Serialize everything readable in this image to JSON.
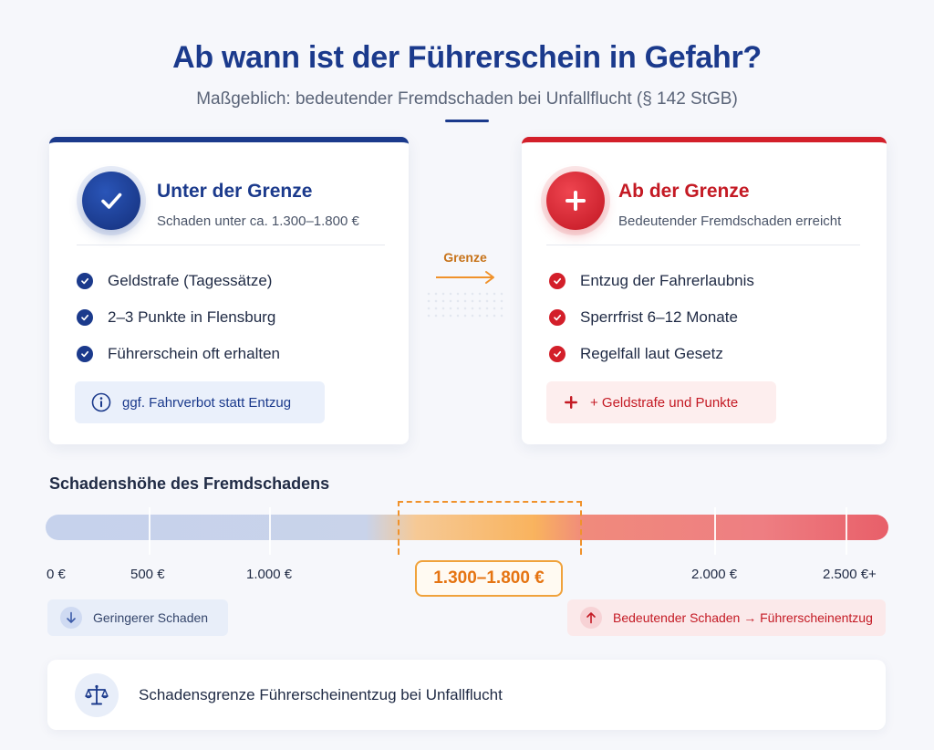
{
  "header": {
    "title": "Ab wann ist der Führerschein in Gefahr?",
    "subtitle": "Maßgeblich: bedeutender Fremdschaden bei Unfallflucht (§ 142 StGB)"
  },
  "left_card": {
    "icon": "check-icon",
    "accent_color": "#1b3a8c",
    "title": "Unter der Grenze",
    "subtitle": "Schaden unter ca. 1.300–1.800 €",
    "items": [
      "Geldstrafe (Tagessätze)",
      "2–3 Punkte in Flensburg",
      "Führerschein oft erhalten"
    ],
    "note_icon": "info-icon",
    "note": "ggf. Fahrverbot statt Entzug"
  },
  "middle": {
    "label": "Grenze",
    "icon": "arrow-right-icon"
  },
  "right_card": {
    "icon": "plus-icon",
    "accent_color": "#d31f2a",
    "title": "Ab der Grenze",
    "subtitle": "Bedeutender Fremdschaden erreicht",
    "items": [
      "Entzug der Fahrerlaubnis",
      "Sperrfrist 6–12 Monate",
      "Regelfall laut Gesetz"
    ],
    "note_icon": "plus-icon",
    "note": "+ Geldstrafe und Punkte"
  },
  "scale": {
    "title": "Schadenshöhe des Fremdschadens",
    "tick_labels": [
      "0 €",
      "500 €",
      "1.000 €",
      "2.000 €",
      "2.500 €+"
    ],
    "range_label": "1.300–1.800 €",
    "low_tag": {
      "icon": "arrow-down-icon",
      "label": "Geringerer Schaden"
    },
    "high_tag": {
      "icon": "arrow-up-icon",
      "label": "Bedeutender Schaden → Führerscheinentzug"
    }
  },
  "footer": {
    "icon": "scales-icon",
    "text": "Schadensgrenze Führerscheinentzug bei Unfallflucht"
  }
}
